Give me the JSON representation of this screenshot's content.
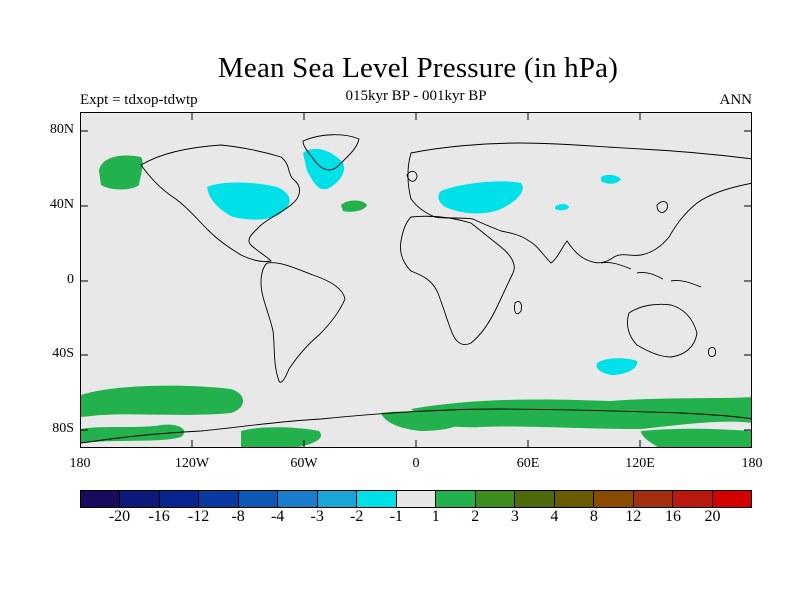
{
  "title": "Mean Sea Level Pressure (in hPa)",
  "subtitle": "015kyr BP - 001kyr BP",
  "left_label": "Expt = tdxop-tdwtp",
  "right_label": "ANN",
  "y_ticks": [
    "80N",
    "40N",
    "0",
    "40S",
    "80S"
  ],
  "x_ticks": [
    "180",
    "120W",
    "60W",
    "0",
    "60E",
    "120E",
    "180"
  ],
  "colorbar": {
    "colors": [
      "#1a0a5e",
      "#0b1a7a",
      "#08258f",
      "#0a3aa0",
      "#0f57b6",
      "#1a7ccb",
      "#1aa5d8",
      "#00e0e8",
      "#e6e6e6",
      "#22b14c",
      "#3c8c1e",
      "#4e6a0a",
      "#6a5a00",
      "#8a4a00",
      "#a03010",
      "#b81a10",
      "#d40000"
    ],
    "labels": [
      "-20",
      "-16",
      "-12",
      "-8",
      "-4",
      "-3",
      "-2",
      "-1",
      "1",
      "2",
      "3",
      "4",
      "8",
      "12",
      "16",
      "20"
    ]
  },
  "map_colors": {
    "background": "#e8e8e8",
    "positive": "#22b14c",
    "negative": "#00e0e8",
    "coast": "#000000"
  }
}
